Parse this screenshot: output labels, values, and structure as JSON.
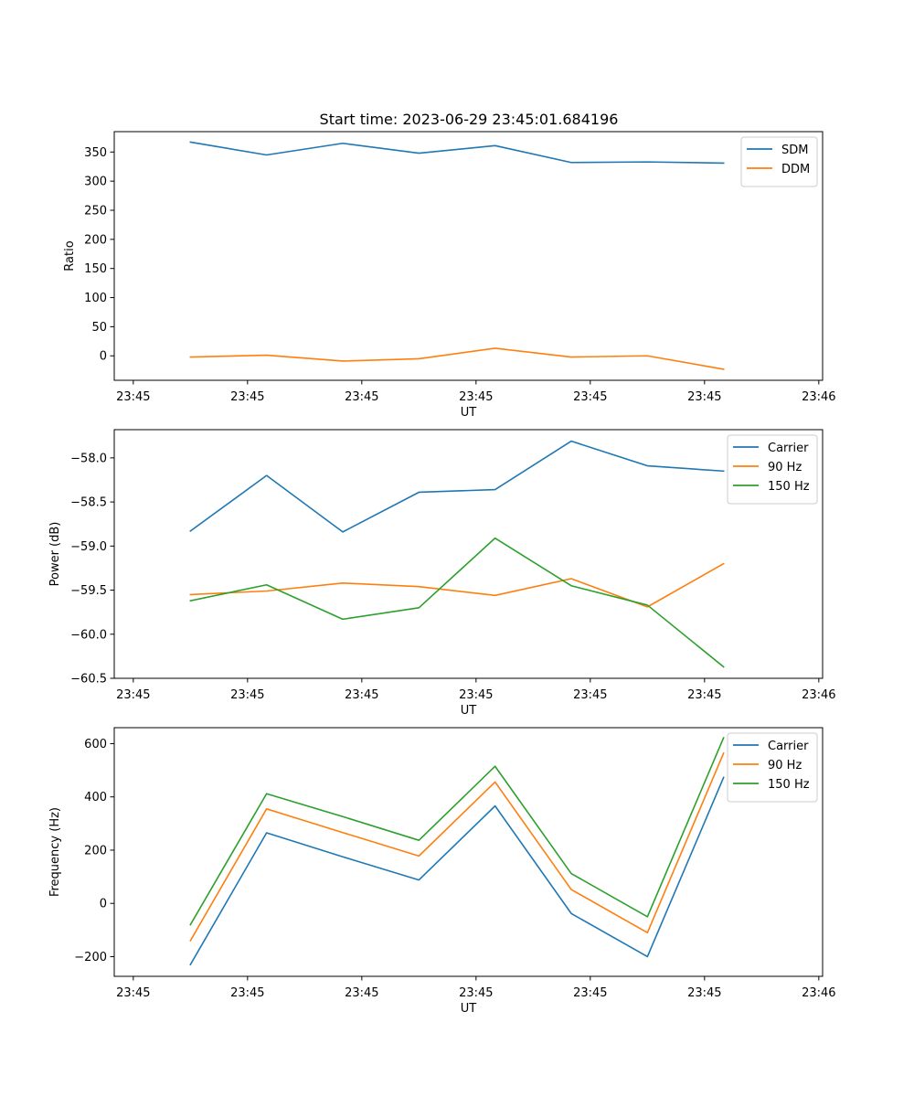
{
  "figure": {
    "title": "Start time: 2023-06-29 23:45:01.684196"
  },
  "chart_data": [
    {
      "type": "line",
      "title": "Start time: 2023-06-29 23:45:01.684196",
      "xlabel": "UT",
      "ylabel": "Ratio",
      "xlim": [
        0,
        9.3
      ],
      "ylim": [
        -42,
        385
      ],
      "x": [
        1,
        2,
        3,
        4,
        5,
        6,
        7,
        8
      ],
      "x_ticks": [
        0.25,
        1.75,
        3.25,
        4.75,
        6.25,
        7.75,
        9.25
      ],
      "x_tick_labels": [
        "23:45",
        "23:45",
        "23:45",
        "23:45",
        "23:45",
        "23:45",
        "23:46"
      ],
      "y_ticks": [
        0,
        50,
        100,
        150,
        200,
        250,
        300,
        350
      ],
      "y_tick_labels": [
        "0",
        "50",
        "100",
        "150",
        "200",
        "250",
        "300",
        "350"
      ],
      "legend_position": "top-right",
      "grid": false,
      "series": [
        {
          "name": "SDM",
          "color": "#1f77b4",
          "values": [
            367,
            345,
            365,
            348,
            361,
            332,
            333,
            331
          ]
        },
        {
          "name": "DDM",
          "color": "#ff7f0e",
          "values": [
            -2,
            1,
            -9,
            -5,
            13,
            -2,
            0,
            -23
          ]
        }
      ]
    },
    {
      "type": "line",
      "xlabel": "UT",
      "ylabel": "Power (dB)",
      "xlim": [
        0,
        9.3
      ],
      "ylim": [
        -60.5,
        -57.68
      ],
      "x": [
        1,
        2,
        3,
        4,
        5,
        6,
        7,
        8
      ],
      "x_ticks": [
        0.25,
        1.75,
        3.25,
        4.75,
        6.25,
        7.75,
        9.25
      ],
      "x_tick_labels": [
        "23:45",
        "23:45",
        "23:45",
        "23:45",
        "23:45",
        "23:45",
        "23:46"
      ],
      "y_ticks": [
        -60.5,
        -60.0,
        -59.5,
        -59.0,
        -58.5,
        -58.0
      ],
      "y_tick_labels": [
        "−60.5",
        "−60.0",
        "−59.5",
        "−59.0",
        "−58.5",
        "−58.0"
      ],
      "legend_position": "top-right",
      "grid": false,
      "series": [
        {
          "name": "Carrier",
          "color": "#1f77b4",
          "values": [
            -58.83,
            -58.2,
            -58.84,
            -58.39,
            -58.36,
            -57.81,
            -58.09,
            -58.15
          ]
        },
        {
          "name": "90 Hz",
          "color": "#ff7f0e",
          "values": [
            -59.55,
            -59.51,
            -59.42,
            -59.46,
            -59.56,
            -59.37,
            -59.69,
            -59.2
          ]
        },
        {
          "name": "150 Hz",
          "color": "#2ca02c",
          "values": [
            -59.62,
            -59.44,
            -59.83,
            -59.7,
            -58.91,
            -59.45,
            -59.67,
            -60.37
          ]
        }
      ]
    },
    {
      "type": "line",
      "xlabel": "UT",
      "ylabel": "Frequency (Hz)",
      "xlim": [
        0,
        9.3
      ],
      "ylim": [
        -274,
        660
      ],
      "x": [
        1,
        2,
        3,
        4,
        5,
        6,
        7,
        8
      ],
      "x_ticks": [
        0.25,
        1.75,
        3.25,
        4.75,
        6.25,
        7.75,
        9.25
      ],
      "x_tick_labels": [
        "23:45",
        "23:45",
        "23:45",
        "23:45",
        "23:45",
        "23:45",
        "23:46"
      ],
      "y_ticks": [
        -200,
        0,
        200,
        400,
        600
      ],
      "y_tick_labels": [
        "−200",
        "0",
        "200",
        "400",
        "600"
      ],
      "legend_position": "top-right",
      "grid": false,
      "series": [
        {
          "name": "Carrier",
          "color": "#1f77b4",
          "values": [
            -230,
            265,
            175,
            88,
            366,
            -38,
            -200,
            473
          ]
        },
        {
          "name": "90 Hz",
          "color": "#ff7f0e",
          "values": [
            -140,
            355,
            266,
            178,
            456,
            52,
            -110,
            564
          ]
        },
        {
          "name": "150 Hz",
          "color": "#2ca02c",
          "values": [
            -80,
            412,
            326,
            237,
            515,
            112,
            -50,
            622
          ]
        }
      ]
    }
  ]
}
